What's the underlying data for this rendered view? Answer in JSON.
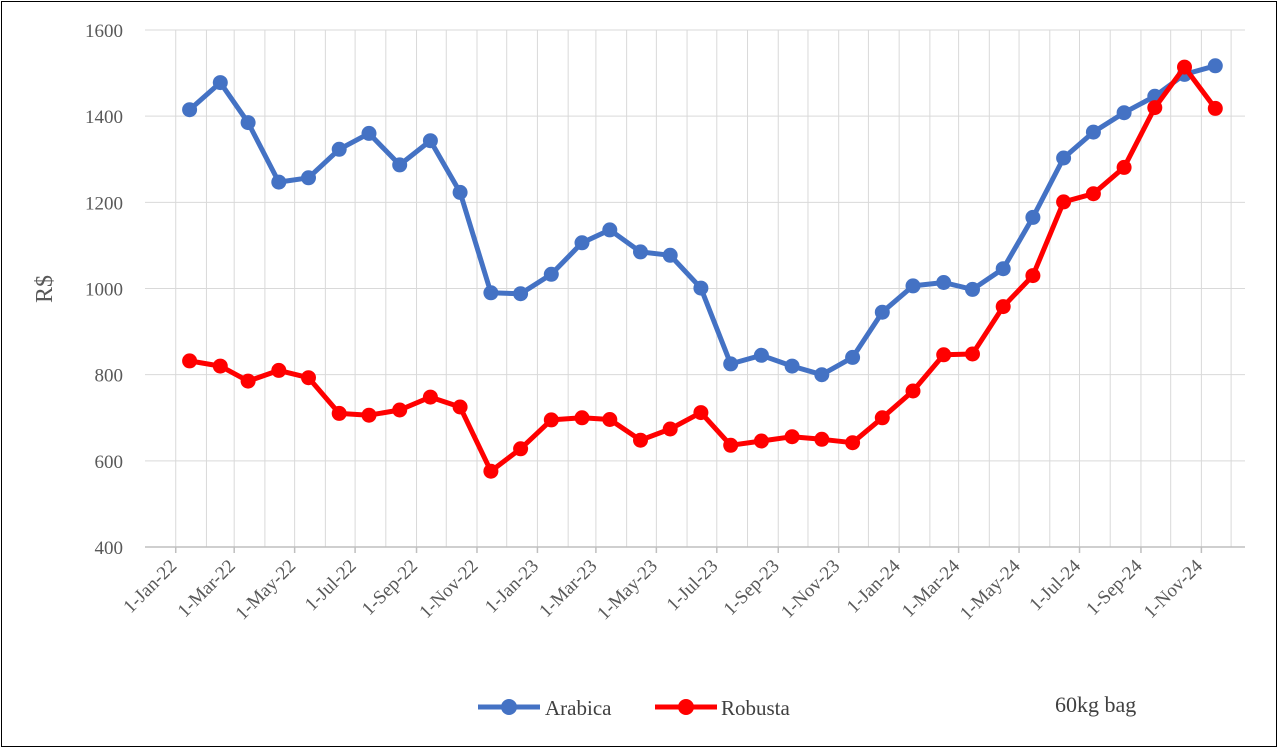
{
  "chart_data": {
    "type": "line",
    "title": "",
    "xlabel": "",
    "ylabel": "R$",
    "ylim": [
      400,
      1600
    ],
    "yticks": [
      400,
      600,
      800,
      1000,
      1200,
      1400,
      1600
    ],
    "xtick_labels": [
      "1-Jan-22",
      "1-Mar-22",
      "1-May-22",
      "1-Jul-22",
      "1-Sep-22",
      "1-Nov-22",
      "1-Jan-23",
      "1-Mar-23",
      "1-May-23",
      "1-Jul-23",
      "1-Sep-23",
      "1-Nov-23",
      "1-Jan-24",
      "1-Mar-24",
      "1-May-24",
      "1-Jul-24",
      "1-Sep-24",
      "1-Nov-24"
    ],
    "grid": "vertical and horizontal",
    "legend_position": "bottom",
    "note": "60kg bag",
    "x": [
      "2022-01-15",
      "2022-02-15",
      "2022-03-15",
      "2022-04-15",
      "2022-05-15",
      "2022-06-15",
      "2022-07-15",
      "2022-08-15",
      "2022-09-15",
      "2022-10-15",
      "2022-11-15",
      "2022-12-15",
      "2023-01-15",
      "2023-02-15",
      "2023-03-15",
      "2023-04-15",
      "2023-05-15",
      "2023-06-15",
      "2023-07-15",
      "2023-08-15",
      "2023-09-15",
      "2023-10-15",
      "2023-11-15",
      "2023-12-15",
      "2024-01-15",
      "2024-02-15",
      "2024-03-15",
      "2024-04-15",
      "2024-05-15",
      "2024-06-15",
      "2024-07-15",
      "2024-08-15",
      "2024-09-15",
      "2024-10-15",
      "2024-11-15"
    ],
    "series": [
      {
        "name": "Arabica",
        "color": "#4472C4",
        "values": [
          1415,
          1478,
          1385,
          1247,
          1257,
          1323,
          1360,
          1287,
          1343,
          1223,
          990,
          988,
          1033,
          1106,
          1136,
          1085,
          1077,
          1001,
          825,
          845,
          820,
          800,
          840,
          945,
          1006,
          1014,
          998,
          1046,
          1165,
          1303,
          1363,
          1408,
          1446,
          1497,
          1517
        ]
      },
      {
        "name": "Robusta",
        "color": "#FF0000",
        "values": [
          832,
          820,
          785,
          810,
          793,
          710,
          706,
          718,
          748,
          725,
          576,
          628,
          695,
          700,
          696,
          648,
          674,
          712,
          636,
          646,
          656,
          650,
          642,
          700,
          762,
          846,
          848,
          958,
          1030,
          1201,
          1220,
          1281,
          1420,
          1514,
          1418
        ]
      }
    ]
  }
}
